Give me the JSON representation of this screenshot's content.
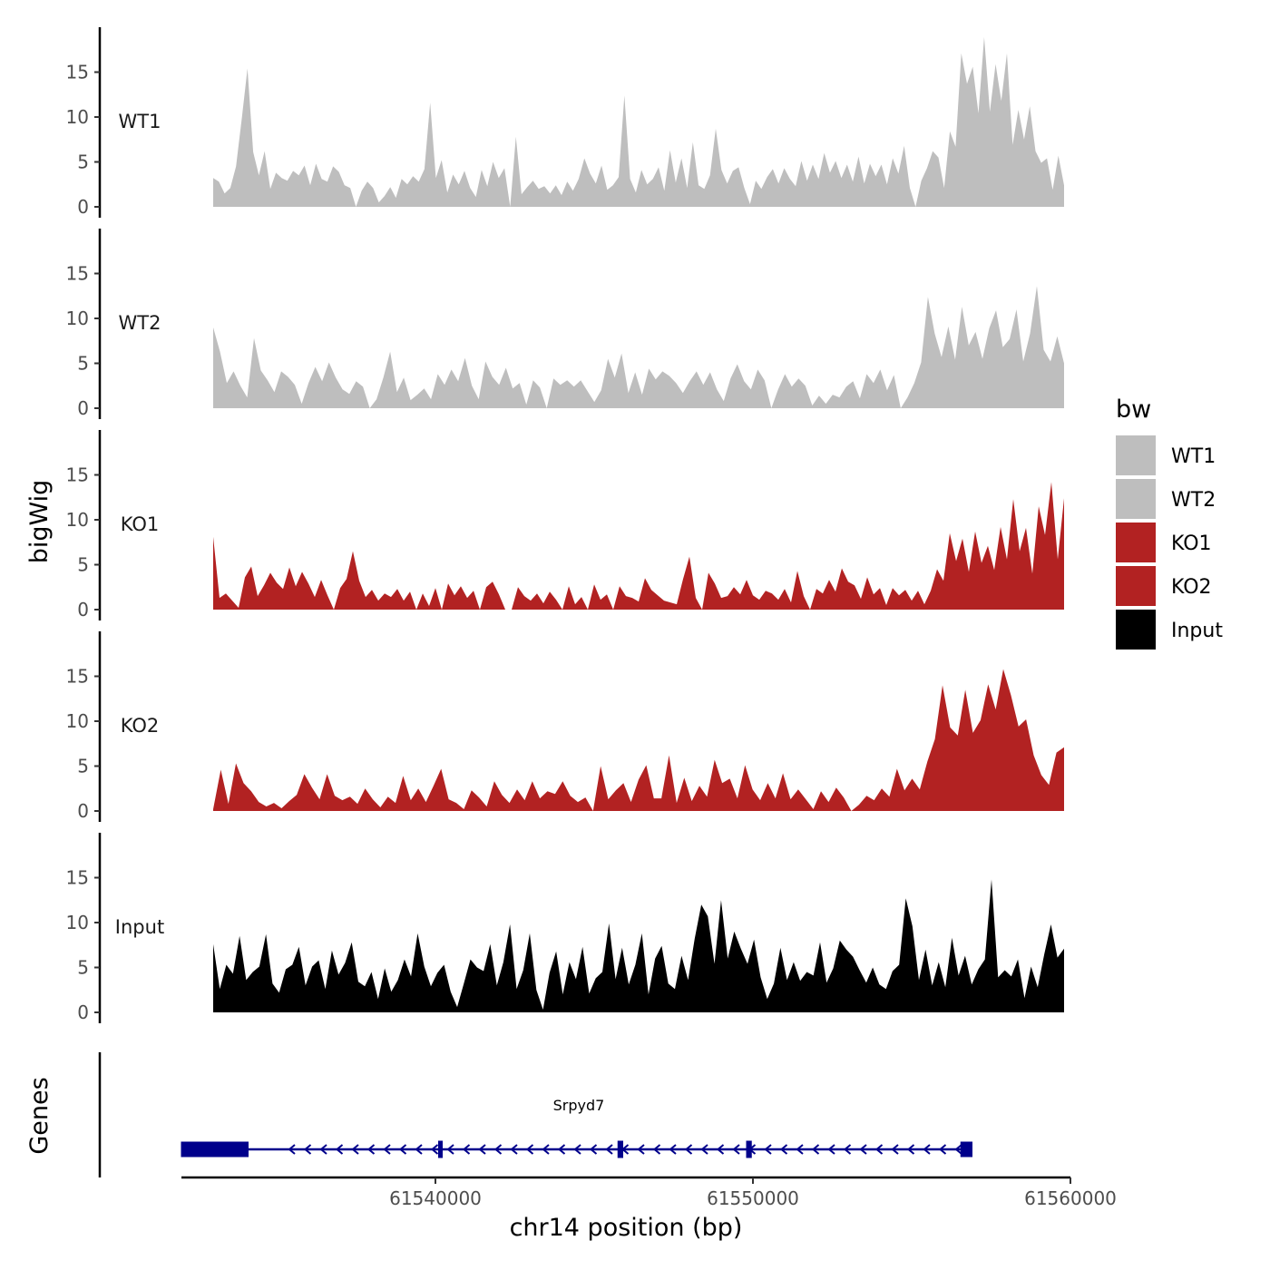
{
  "chart_data": {
    "type": "area",
    "xlabel": "chr14 position (bp)",
    "ylabel": "bigWig",
    "gene_panel_label": "Genes",
    "xlim": [
      61532000,
      61560000
    ],
    "x_ticks": [
      61540000,
      61550000,
      61560000
    ],
    "x_tick_labels": [
      "61540000",
      "61550000",
      "61560000"
    ],
    "ylim": [
      0,
      20
    ],
    "y_ticks": [
      0,
      5,
      10,
      15
    ],
    "y_tick_labels": [
      "0",
      "5",
      "10",
      "15"
    ],
    "legend": {
      "title": "bw",
      "position": "right",
      "entries": [
        {
          "name": "WT1",
          "color": "#BEBEBE"
        },
        {
          "name": "WT2",
          "color": "#BEBEBE"
        },
        {
          "name": "KO1",
          "color": "#B22222"
        },
        {
          "name": "KO2",
          "color": "#B22222"
        },
        {
          "name": "Input",
          "color": "#000000"
        }
      ]
    },
    "x_range": [
      61533000,
      61559800
    ],
    "series": [
      {
        "name": "WT1",
        "color": "#BEBEBE",
        "values": [
          3.2,
          2.8,
          1.5,
          2.1,
          4.5,
          9.8,
          15.4,
          6.1,
          3.5,
          6.2,
          2.0,
          3.8,
          3.2,
          2.9,
          4.0,
          3.5,
          4.6,
          2.4,
          4.8,
          3.1,
          2.8,
          4.5,
          3.9,
          2.4,
          2.1,
          0.0,
          1.8,
          2.8,
          2.1,
          0.5,
          1.2,
          2.2,
          1.0,
          3.1,
          2.5,
          3.4,
          2.8,
          4.2,
          11.6,
          3.2,
          5.2,
          1.6,
          3.6,
          2.5,
          4.0,
          2.1,
          1.1,
          4.1,
          2.3,
          5.0,
          3.2,
          4.3,
          0.0,
          7.8,
          1.4,
          2.2,
          2.9,
          2.0,
          2.3,
          1.5,
          2.4,
          1.3,
          2.8,
          1.8,
          3.1,
          5.4,
          3.7,
          2.6,
          4.6,
          1.9,
          2.4,
          3.3,
          12.4,
          3.1,
          1.6,
          4.1,
          2.5,
          3.1,
          4.4,
          1.8,
          6.3,
          2.7,
          5.4,
          2.1,
          7.2,
          2.4,
          2.0,
          3.5,
          8.7,
          4.1,
          2.6,
          4.0,
          4.4,
          2.1,
          0.3,
          2.9,
          2.0,
          3.3,
          4.2,
          2.6,
          4.3,
          3.1,
          2.3,
          5.1,
          2.9,
          4.7,
          3.1,
          6.0,
          3.8,
          5.1,
          3.2,
          4.7,
          2.8,
          5.6,
          2.6,
          4.8,
          3.4,
          4.7,
          2.5,
          5.4,
          3.7,
          6.8,
          2.1,
          0.0,
          2.9,
          4.3,
          6.2,
          5.5,
          2.1,
          8.4,
          6.7,
          17.1,
          13.7,
          15.6,
          10.4,
          18.9,
          10.6,
          15.9,
          11.8,
          17.1,
          6.9,
          10.8,
          7.5,
          11.2,
          6.2,
          4.9,
          5.4,
          1.9,
          5.7,
          2.4
        ]
      },
      {
        "name": "WT2",
        "color": "#BEBEBE",
        "values": [
          9.0,
          6.3,
          2.8,
          4.1,
          2.5,
          1.2,
          7.8,
          4.2,
          3.1,
          1.8,
          4.1,
          3.5,
          2.6,
          0.5,
          2.8,
          4.6,
          3.0,
          5.1,
          3.4,
          2.1,
          1.6,
          3.0,
          2.4,
          0.0,
          1.0,
          3.4,
          6.3,
          1.8,
          3.4,
          0.9,
          1.5,
          2.2,
          1.0,
          3.8,
          2.6,
          4.3,
          3.0,
          5.6,
          2.5,
          1.0,
          5.2,
          3.5,
          2.6,
          4.5,
          2.2,
          2.8,
          0.4,
          3.1,
          2.3,
          0.0,
          3.3,
          2.6,
          3.1,
          2.4,
          3.1,
          1.9,
          0.7,
          2.0,
          5.5,
          3.4,
          6.1,
          1.7,
          4.0,
          1.5,
          4.4,
          3.2,
          4.1,
          3.6,
          2.8,
          1.7,
          3.0,
          4.1,
          2.6,
          4.0,
          2.1,
          0.8,
          3.3,
          4.9,
          3.0,
          2.1,
          4.3,
          3.1,
          0.0,
          2.1,
          3.8,
          2.4,
          3.3,
          2.5,
          0.3,
          1.4,
          0.5,
          1.5,
          1.2,
          2.4,
          3.0,
          1.1,
          3.8,
          2.8,
          4.3,
          2.0,
          3.7,
          0.0,
          1.2,
          2.8,
          5.1,
          12.4,
          8.3,
          5.7,
          9.1,
          5.4,
          11.3,
          7.0,
          8.5,
          5.5,
          8.9,
          10.9,
          6.8,
          7.7,
          11.0,
          5.2,
          8.3,
          13.6,
          6.5,
          5.2,
          8.0,
          5.0
        ]
      },
      {
        "name": "KO1",
        "color": "#B22222",
        "values": [
          8.1,
          1.3,
          1.8,
          1.0,
          0.2,
          3.6,
          4.8,
          1.5,
          2.7,
          4.1,
          3.0,
          2.3,
          4.7,
          2.6,
          4.2,
          2.9,
          1.4,
          3.3,
          1.6,
          0.0,
          2.4,
          3.4,
          6.5,
          3.2,
          1.4,
          2.2,
          1.0,
          1.8,
          1.4,
          2.3,
          1.0,
          2.0,
          0.0,
          1.8,
          0.4,
          2.4,
          0.0,
          2.9,
          1.6,
          2.6,
          1.3,
          2.1,
          0.0,
          2.5,
          3.1,
          1.7,
          0.0,
          0.0,
          2.5,
          1.5,
          1.0,
          1.8,
          0.7,
          2.0,
          1.1,
          0.0,
          2.6,
          0.6,
          1.4,
          0.0,
          2.8,
          1.1,
          1.7,
          0.0,
          2.6,
          1.5,
          1.3,
          0.9,
          3.5,
          2.2,
          1.6,
          1.0,
          0.8,
          0.6,
          3.4,
          5.9,
          1.3,
          0.0,
          4.1,
          2.9,
          1.3,
          1.5,
          2.5,
          1.7,
          3.3,
          1.6,
          1.1,
          2.1,
          1.8,
          1.1,
          2.3,
          0.8,
          4.3,
          1.5,
          0.0,
          2.3,
          1.8,
          3.3,
          2.0,
          4.6,
          3.1,
          2.7,
          1.2,
          3.6,
          1.7,
          2.4,
          0.5,
          2.4,
          1.6,
          2.2,
          1.0,
          2.1,
          0.6,
          2.1,
          4.5,
          3.2,
          8.5,
          5.4,
          7.9,
          4.2,
          8.7,
          5.2,
          7.1,
          4.4,
          9.2,
          5.6,
          12.3,
          6.5,
          9.1,
          4.0,
          11.5,
          8.3,
          14.2,
          5.6,
          12.4
        ]
      },
      {
        "name": "KO2",
        "color": "#B22222",
        "values": [
          0.2,
          4.6,
          0.8,
          5.3,
          3.1,
          2.2,
          1.0,
          0.5,
          0.9,
          0.3,
          1.1,
          1.8,
          4.1,
          2.6,
          1.3,
          4.1,
          1.7,
          1.2,
          1.6,
          0.8,
          2.5,
          1.3,
          0.4,
          1.6,
          0.9,
          3.9,
          1.2,
          2.5,
          1.0,
          2.8,
          4.7,
          1.3,
          0.9,
          0.2,
          2.3,
          1.5,
          0.5,
          3.3,
          1.8,
          0.9,
          2.4,
          1.2,
          3.3,
          1.4,
          2.2,
          1.9,
          3.3,
          1.7,
          1.0,
          1.5,
          0.0,
          5.0,
          1.3,
          2.3,
          3.1,
          1.0,
          3.5,
          5.1,
          1.4,
          1.4,
          6.2,
          0.9,
          3.7,
          1.1,
          2.8,
          1.6,
          5.7,
          3.1,
          3.6,
          1.4,
          5.1,
          2.4,
          1.2,
          3.1,
          1.4,
          4.2,
          1.3,
          2.4,
          1.3,
          0.2,
          2.2,
          1.0,
          2.6,
          1.5,
          0.0,
          0.7,
          1.7,
          1.2,
          2.5,
          1.6,
          4.7,
          2.3,
          3.6,
          2.4,
          5.5,
          8.0,
          14.0,
          9.3,
          8.4,
          13.5,
          8.7,
          10.1,
          14.1,
          11.3,
          15.8,
          12.9,
          9.4,
          10.2,
          6.2,
          4.0,
          2.9,
          6.5,
          7.1
        ]
      },
      {
        "name": "Input",
        "color": "#000000",
        "values": [
          7.6,
          2.6,
          5.3,
          4.3,
          8.5,
          3.6,
          4.5,
          5.1,
          8.7,
          3.2,
          2.2,
          4.8,
          5.3,
          7.3,
          3.0,
          5.1,
          5.8,
          2.6,
          6.9,
          4.2,
          5.5,
          7.8,
          3.4,
          2.9,
          4.5,
          1.5,
          4.9,
          2.3,
          3.6,
          5.9,
          4.0,
          8.8,
          5.1,
          2.9,
          4.4,
          5.3,
          2.3,
          0.6,
          3.2,
          5.9,
          5.0,
          4.6,
          7.6,
          3.0,
          5.6,
          9.8,
          2.6,
          4.7,
          8.8,
          2.5,
          0.3,
          4.4,
          6.8,
          2.0,
          5.6,
          3.7,
          7.3,
          2.1,
          3.8,
          4.5,
          9.9,
          3.7,
          7.2,
          3.1,
          5.3,
          8.8,
          2.0,
          6.0,
          7.4,
          3.2,
          2.6,
          6.3,
          3.6,
          8.2,
          12.0,
          10.7,
          5.4,
          12.5,
          6.0,
          9.0,
          7.1,
          5.4,
          8.1,
          3.9,
          1.5,
          3.2,
          7.2,
          3.6,
          5.6,
          3.5,
          4.5,
          4.1,
          7.8,
          3.3,
          4.9,
          8.0,
          7.0,
          6.2,
          4.7,
          3.3,
          5.0,
          3.1,
          2.6,
          4.6,
          5.3,
          12.7,
          9.6,
          3.6,
          7.0,
          3.0,
          5.6,
          2.8,
          8.3,
          4.1,
          6.3,
          3.1,
          4.8,
          5.9,
          14.8,
          3.9,
          4.7,
          4.0,
          5.9,
          1.6,
          5.1,
          2.8,
          6.5,
          9.8,
          6.1,
          7.1
        ]
      }
    ],
    "gene_track": {
      "gene_name": "Srpyd7",
      "strand": "-",
      "color": "#00008B",
      "span": [
        61532000,
        61556800
      ],
      "exons": [
        {
          "start": 61532000,
          "end": 61533200,
          "thick": true
        },
        {
          "start": 61533200,
          "end": 61534100,
          "thick": true
        },
        {
          "start": 61540100,
          "end": 61540200,
          "thick": false
        },
        {
          "start": 61545750,
          "end": 61545900,
          "thick": false
        },
        {
          "start": 61549800,
          "end": 61549950,
          "thick": false
        },
        {
          "start": 61556550,
          "end": 61556900,
          "thick": true
        }
      ]
    }
  }
}
